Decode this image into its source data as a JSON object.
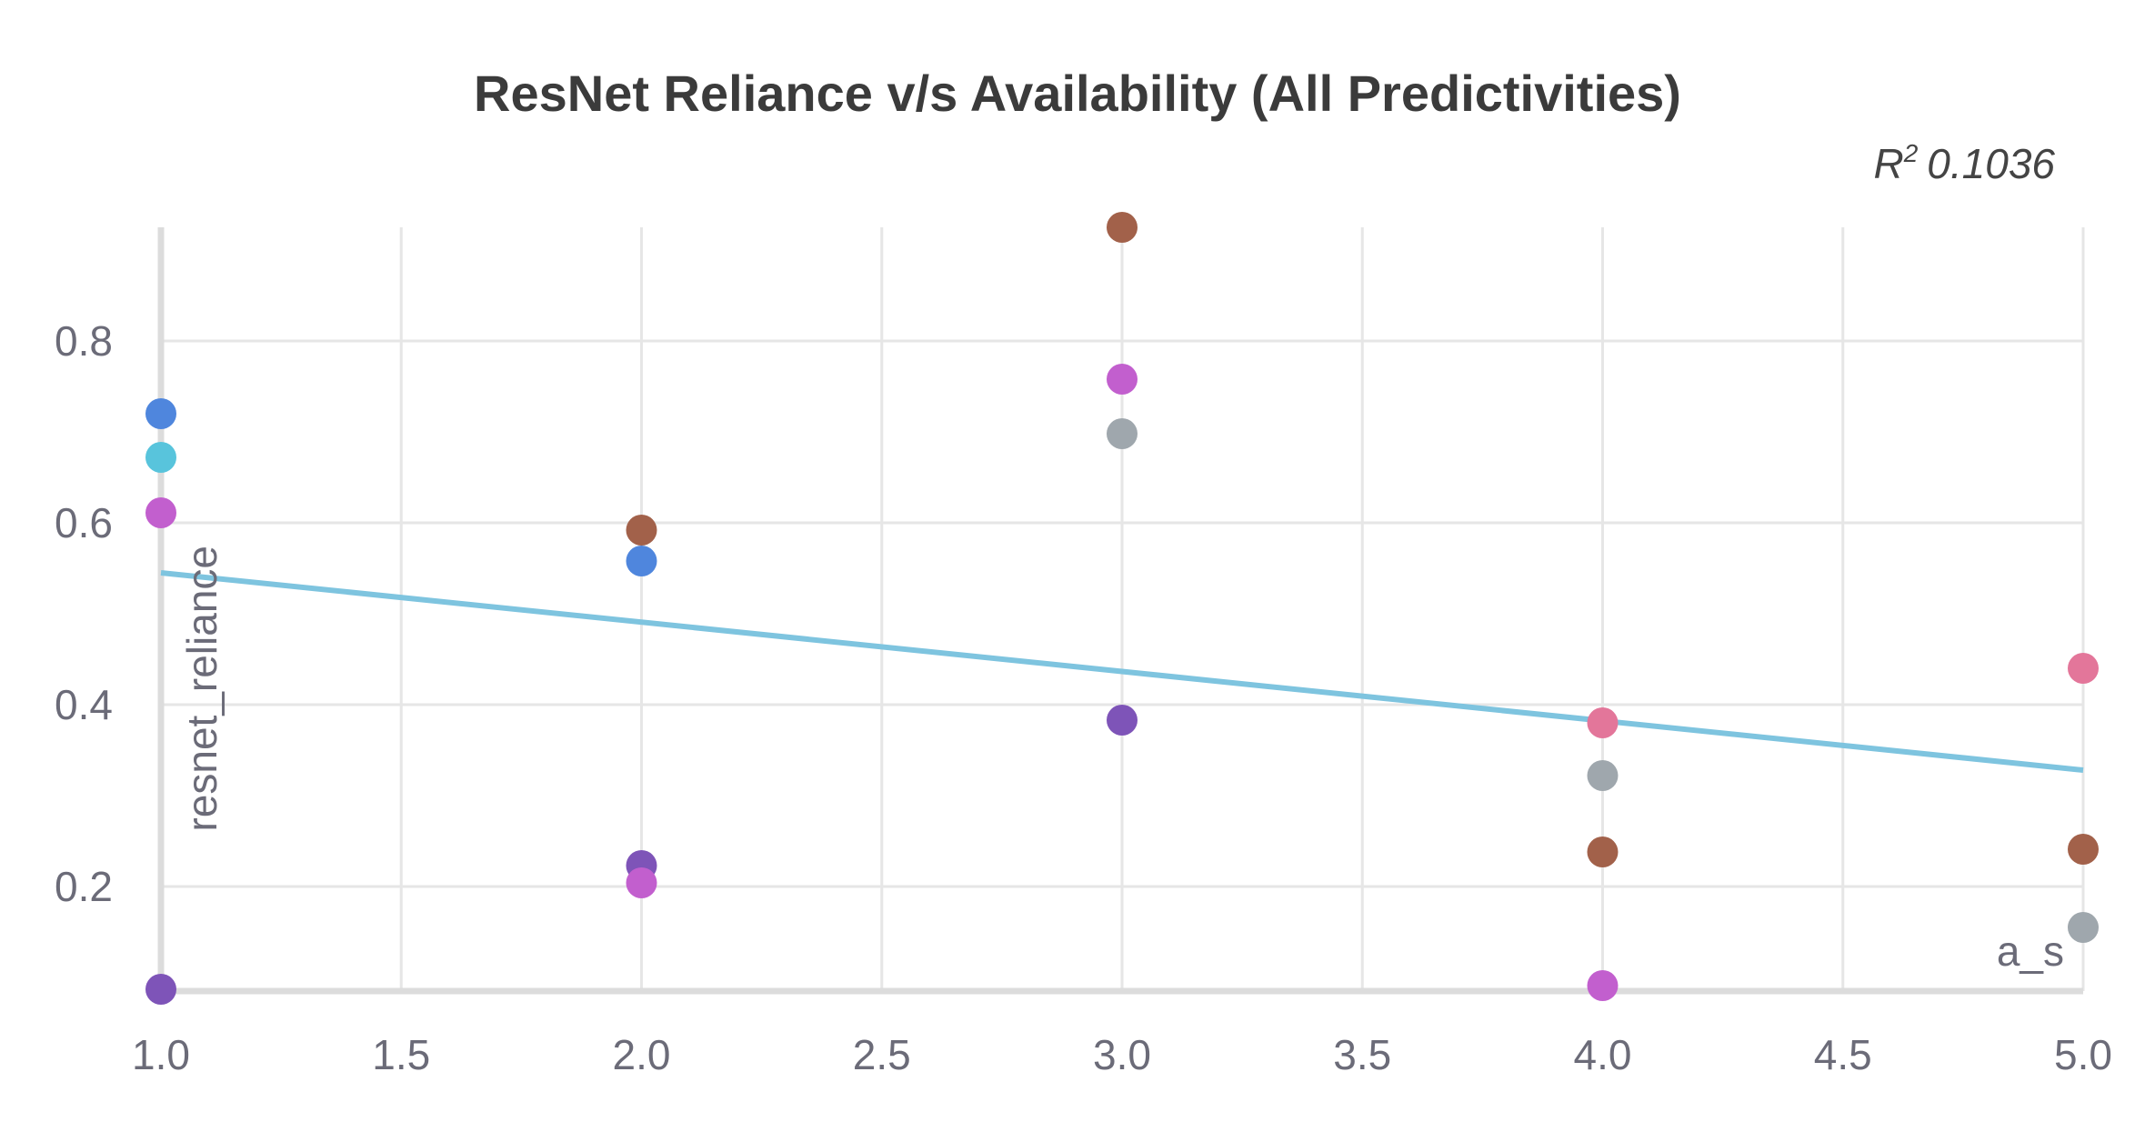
{
  "chart_data": {
    "type": "scatter",
    "title": "ResNet Reliance v/s Availability (All Predictivities)",
    "r2_label": "R",
    "r2_sup": "2",
    "r2_value": "0.1036",
    "xlabel": "a_s",
    "ylabel": "resnet_reliance",
    "xlim": [
      1.0,
      5.0
    ],
    "ylim": [
      0.085,
      0.925
    ],
    "x_ticks": [
      1.0,
      1.5,
      2.0,
      2.5,
      3.0,
      3.5,
      4.0,
      4.5,
      5.0
    ],
    "x_tick_labels": [
      "1.0",
      "1.5",
      "2.0",
      "2.5",
      "3.0",
      "3.5",
      "4.0",
      "4.5",
      "5.0"
    ],
    "y_ticks": [
      0.2,
      0.4,
      0.6,
      0.8
    ],
    "y_tick_labels": [
      "0.2",
      "0.4",
      "0.6",
      "0.8"
    ],
    "grid": true,
    "trendline": {
      "x": [
        1.0,
        5.0
      ],
      "y": [
        0.545,
        0.328
      ],
      "color": "#7ec4df"
    },
    "points": [
      {
        "x": 1.0,
        "y": 0.72,
        "color": "#4f86dd"
      },
      {
        "x": 1.0,
        "y": 0.672,
        "color": "#58c4dc"
      },
      {
        "x": 1.0,
        "y": 0.611,
        "color": "#c25fce"
      },
      {
        "x": 1.0,
        "y": 0.087,
        "color": "#7e54b8"
      },
      {
        "x": 2.0,
        "y": 0.592,
        "color": "#a2614a"
      },
      {
        "x": 2.0,
        "y": 0.558,
        "color": "#4f86dd"
      },
      {
        "x": 2.0,
        "y": 0.223,
        "color": "#7e54b8"
      },
      {
        "x": 2.0,
        "y": 0.204,
        "color": "#c25fce"
      },
      {
        "x": 3.0,
        "y": 0.925,
        "color": "#a2614a"
      },
      {
        "x": 3.0,
        "y": 0.758,
        "color": "#c25fce"
      },
      {
        "x": 3.0,
        "y": 0.698,
        "color": "#9fa7ad"
      },
      {
        "x": 3.0,
        "y": 0.383,
        "color": "#7e54b8"
      },
      {
        "x": 4.0,
        "y": 0.38,
        "color": "#e3769a"
      },
      {
        "x": 4.0,
        "y": 0.322,
        "color": "#9fa7ad"
      },
      {
        "x": 4.0,
        "y": 0.238,
        "color": "#a2614a"
      },
      {
        "x": 4.0,
        "y": 0.091,
        "color": "#c25fce"
      },
      {
        "x": 5.0,
        "y": 0.44,
        "color": "#e3769a"
      },
      {
        "x": 5.0,
        "y": 0.241,
        "color": "#a2614a"
      },
      {
        "x": 5.0,
        "y": 0.155,
        "color": "#9fa7ad"
      }
    ]
  }
}
